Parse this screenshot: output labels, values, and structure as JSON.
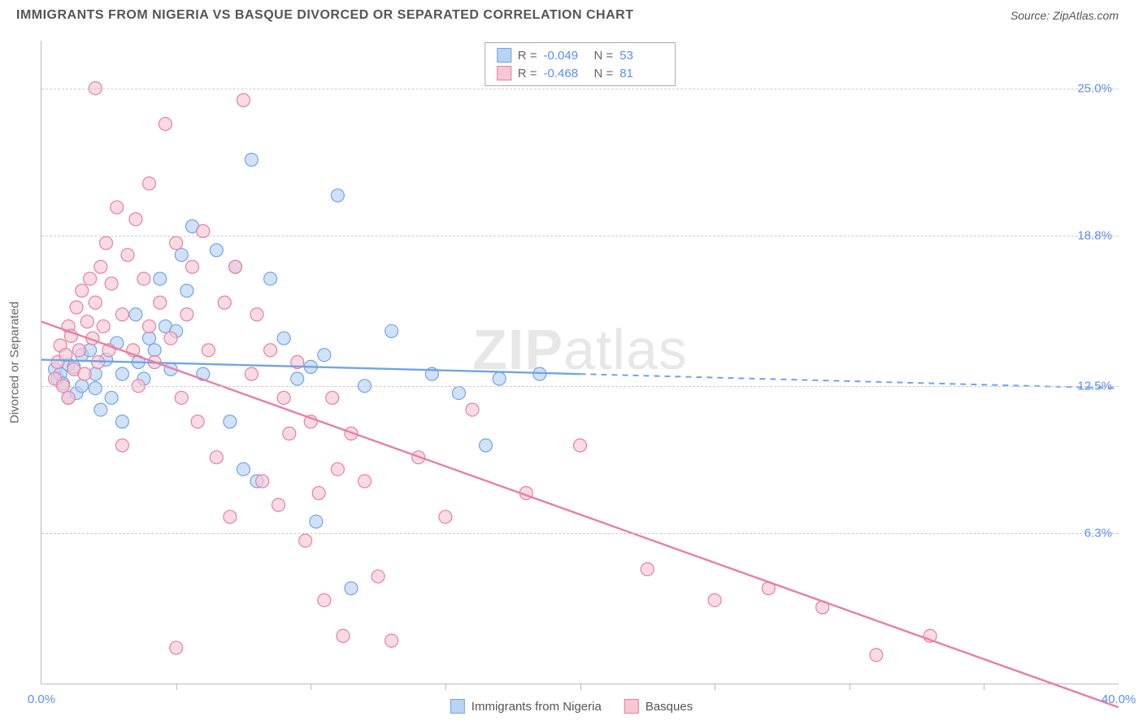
{
  "title": "IMMIGRANTS FROM NIGERIA VS BASQUE DIVORCED OR SEPARATED CORRELATION CHART",
  "source": "Source: ZipAtlas.com",
  "ylabel": "Divorced or Separated",
  "watermark": "ZIPatlas",
  "chart": {
    "type": "scatter",
    "xlim": [
      0,
      40
    ],
    "ylim": [
      0,
      27
    ],
    "xtick_labels": [
      {
        "pos": 0,
        "label": "0.0%"
      },
      {
        "pos": 40,
        "label": "40.0%"
      }
    ],
    "xtick_minor": [
      5,
      10,
      15,
      20,
      25,
      30,
      35
    ],
    "ytick_labels": [
      {
        "pos": 6.3,
        "label": "6.3%"
      },
      {
        "pos": 12.5,
        "label": "12.5%"
      },
      {
        "pos": 18.8,
        "label": "18.8%"
      },
      {
        "pos": 25.0,
        "label": "25.0%"
      }
    ],
    "grid_color": "#cccccc",
    "background_color": "#ffffff",
    "series": [
      {
        "name": "Immigrants from Nigeria",
        "color_fill": "#b9d3f4",
        "color_stroke": "#6fa5e8",
        "R": "-0.049",
        "N": "53",
        "regression": {
          "x1": 0,
          "y1": 13.6,
          "x2": 40,
          "y2": 12.4,
          "solid_until_x": 20
        },
        "points": [
          [
            0.5,
            13.2
          ],
          [
            0.6,
            12.8
          ],
          [
            0.7,
            13.0
          ],
          [
            0.8,
            12.6
          ],
          [
            1.0,
            13.4
          ],
          [
            1.0,
            12.0
          ],
          [
            1.2,
            13.3
          ],
          [
            1.3,
            12.2
          ],
          [
            1.5,
            13.8
          ],
          [
            1.5,
            12.5
          ],
          [
            1.8,
            14.0
          ],
          [
            2.0,
            13.0
          ],
          [
            2.0,
            12.4
          ],
          [
            2.2,
            11.5
          ],
          [
            2.4,
            13.6
          ],
          [
            2.6,
            12.0
          ],
          [
            2.8,
            14.3
          ],
          [
            3.0,
            13.0
          ],
          [
            3.0,
            11.0
          ],
          [
            3.5,
            15.5
          ],
          [
            3.6,
            13.5
          ],
          [
            3.8,
            12.8
          ],
          [
            4.0,
            14.5
          ],
          [
            4.2,
            14.0
          ],
          [
            4.4,
            17.0
          ],
          [
            4.6,
            15.0
          ],
          [
            4.8,
            13.2
          ],
          [
            5.0,
            14.8
          ],
          [
            5.2,
            18.0
          ],
          [
            5.4,
            16.5
          ],
          [
            5.6,
            19.2
          ],
          [
            6.0,
            13.0
          ],
          [
            6.5,
            18.2
          ],
          [
            7.0,
            11.0
          ],
          [
            7.2,
            17.5
          ],
          [
            7.5,
            9.0
          ],
          [
            7.8,
            22.0
          ],
          [
            8.0,
            8.5
          ],
          [
            8.5,
            17.0
          ],
          [
            9.0,
            14.5
          ],
          [
            9.5,
            12.8
          ],
          [
            10.0,
            13.3
          ],
          [
            10.2,
            6.8
          ],
          [
            10.5,
            13.8
          ],
          [
            11.0,
            20.5
          ],
          [
            11.5,
            4.0
          ],
          [
            12.0,
            12.5
          ],
          [
            13.0,
            14.8
          ],
          [
            14.5,
            13.0
          ],
          [
            15.5,
            12.2
          ],
          [
            16.5,
            10.0
          ],
          [
            17.0,
            12.8
          ],
          [
            18.5,
            13.0
          ]
        ]
      },
      {
        "name": "Basques",
        "color_fill": "#f7c7d4",
        "color_stroke": "#e87fa0",
        "R": "-0.468",
        "N": "81",
        "regression": {
          "x1": 0,
          "y1": 15.2,
          "x2": 40,
          "y2": -1.0,
          "solid_until_x": 40
        },
        "points": [
          [
            0.5,
            12.8
          ],
          [
            0.6,
            13.5
          ],
          [
            0.7,
            14.2
          ],
          [
            0.8,
            12.5
          ],
          [
            0.9,
            13.8
          ],
          [
            1.0,
            15.0
          ],
          [
            1.0,
            12.0
          ],
          [
            1.1,
            14.6
          ],
          [
            1.2,
            13.2
          ],
          [
            1.3,
            15.8
          ],
          [
            1.4,
            14.0
          ],
          [
            1.5,
            16.5
          ],
          [
            1.6,
            13.0
          ],
          [
            1.7,
            15.2
          ],
          [
            1.8,
            17.0
          ],
          [
            1.9,
            14.5
          ],
          [
            2.0,
            16.0
          ],
          [
            2.1,
            13.5
          ],
          [
            2.2,
            17.5
          ],
          [
            2.3,
            15.0
          ],
          [
            2.4,
            18.5
          ],
          [
            2.5,
            14.0
          ],
          [
            2.6,
            16.8
          ],
          [
            2.8,
            20.0
          ],
          [
            3.0,
            15.5
          ],
          [
            3.0,
            10.0
          ],
          [
            3.2,
            18.0
          ],
          [
            3.4,
            14.0
          ],
          [
            3.5,
            19.5
          ],
          [
            3.6,
            12.5
          ],
          [
            3.8,
            17.0
          ],
          [
            4.0,
            15.0
          ],
          [
            4.0,
            21.0
          ],
          [
            4.2,
            13.5
          ],
          [
            4.4,
            16.0
          ],
          [
            4.6,
            23.5
          ],
          [
            4.8,
            14.5
          ],
          [
            5.0,
            18.5
          ],
          [
            5.2,
            12.0
          ],
          [
            5.4,
            15.5
          ],
          [
            5.6,
            17.5
          ],
          [
            5.8,
            11.0
          ],
          [
            6.0,
            19.0
          ],
          [
            6.2,
            14.0
          ],
          [
            6.5,
            9.5
          ],
          [
            6.8,
            16.0
          ],
          [
            7.0,
            7.0
          ],
          [
            7.2,
            17.5
          ],
          [
            7.5,
            24.5
          ],
          [
            7.8,
            13.0
          ],
          [
            8.0,
            15.5
          ],
          [
            8.2,
            8.5
          ],
          [
            8.5,
            14.0
          ],
          [
            8.8,
            7.5
          ],
          [
            9.0,
            12.0
          ],
          [
            9.2,
            10.5
          ],
          [
            9.5,
            13.5
          ],
          [
            9.8,
            6.0
          ],
          [
            10.0,
            11.0
          ],
          [
            10.3,
            8.0
          ],
          [
            10.5,
            3.5
          ],
          [
            10.8,
            12.0
          ],
          [
            11.0,
            9.0
          ],
          [
            11.2,
            2.0
          ],
          [
            11.5,
            10.5
          ],
          [
            12.0,
            8.5
          ],
          [
            12.5,
            4.5
          ],
          [
            13.0,
            1.8
          ],
          [
            14.0,
            9.5
          ],
          [
            15.0,
            7.0
          ],
          [
            16.0,
            11.5
          ],
          [
            18.0,
            8.0
          ],
          [
            20.0,
            10.0
          ],
          [
            22.5,
            4.8
          ],
          [
            25.0,
            3.5
          ],
          [
            27.0,
            4.0
          ],
          [
            29.0,
            3.2
          ],
          [
            31.0,
            1.2
          ],
          [
            33.0,
            2.0
          ],
          [
            5.0,
            1.5
          ],
          [
            2.0,
            25.0
          ]
        ]
      }
    ]
  },
  "legend_bottom": [
    {
      "label": "Immigrants from Nigeria",
      "fill": "#b9d3f4",
      "stroke": "#6fa5e8"
    },
    {
      "label": "Basques",
      "fill": "#f7c7d4",
      "stroke": "#e87fa0"
    }
  ]
}
